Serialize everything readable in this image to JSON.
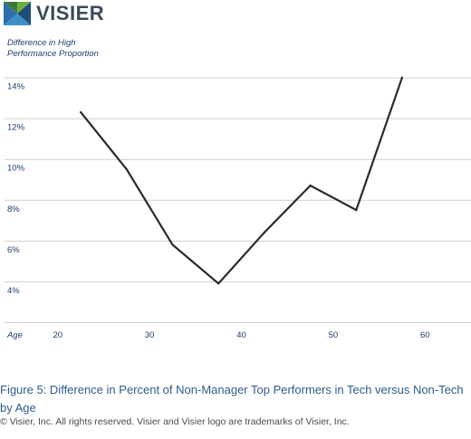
{
  "brand": {
    "logo_text": "VISIER",
    "colors": [
      "#3b7a3e",
      "#6fae3f",
      "#2e6fa8",
      "#1f4e7a"
    ]
  },
  "chart_data": {
    "type": "line",
    "ylabel_lines": [
      "Difference in High",
      "Performance Proportion"
    ],
    "xlabel": "Age",
    "x_ticks": [
      20,
      30,
      40,
      50,
      60
    ],
    "y_ticks": [
      "4%",
      "6%",
      "8%",
      "10%",
      "12%",
      "14%"
    ],
    "y_tick_values": [
      4,
      6,
      8,
      10,
      12,
      14
    ],
    "xlim": [
      14.5,
      65
    ],
    "ylim": [
      2,
      15
    ],
    "grid": true,
    "line_color": "#2b2b2b",
    "series": [
      {
        "x": [
          22.5,
          27.5,
          32.5,
          37.5,
          42.5,
          47.5,
          52.5,
          57.5
        ],
        "values": [
          12.3,
          9.5,
          5.8,
          3.9,
          6.4,
          8.7,
          7.5,
          14.0
        ]
      }
    ]
  },
  "caption": {
    "figure": "Figure 5: Difference in Percent of Non-Manager Top Performers in Tech versus Non-Tech by Age",
    "copyright": "© Visier, Inc. All rights reserved. Visier and Visier logo are trademarks of Visier, Inc."
  }
}
